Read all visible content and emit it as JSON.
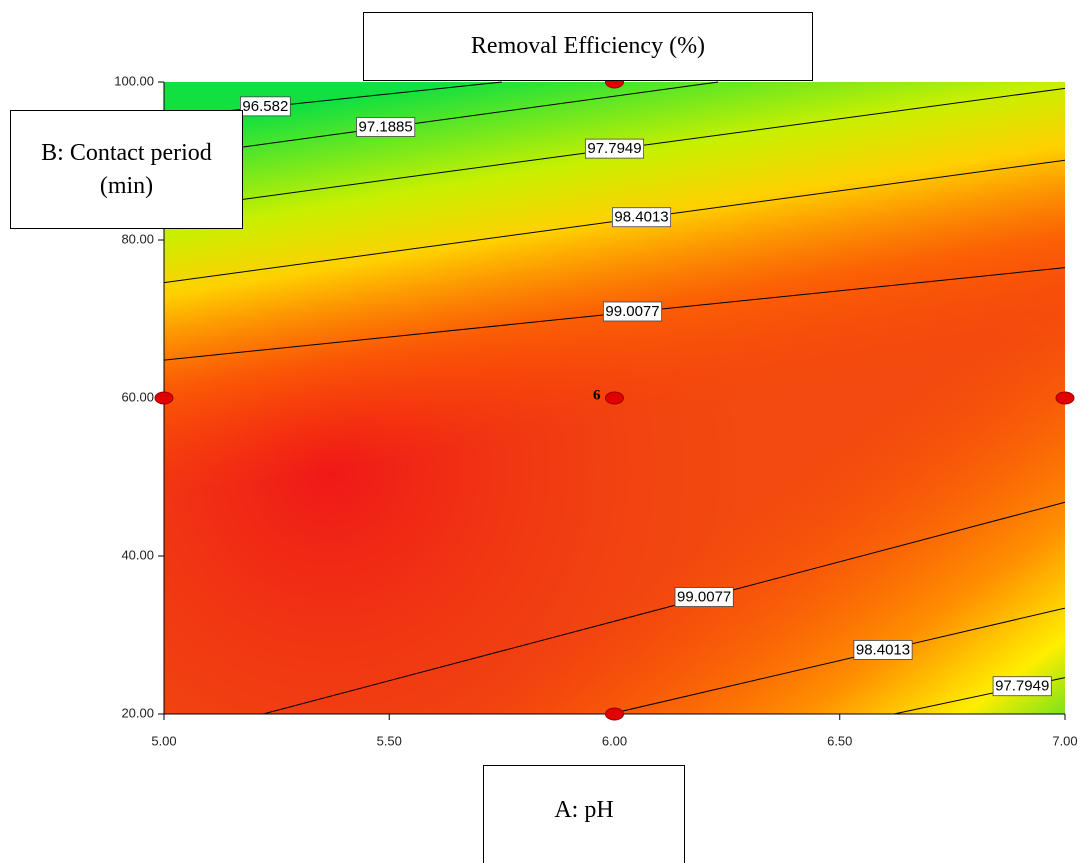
{
  "chart_data": {
    "type": "contour",
    "title": "Removal Efficiency (%)",
    "x_label": "A: pH",
    "y_label": "B: Contact period (min)",
    "xlim": [
      5,
      7
    ],
    "ylim": [
      20,
      100
    ],
    "xticks": [
      {
        "value": 5,
        "label": "5.00"
      },
      {
        "value": 5.5,
        "label": "5.50"
      },
      {
        "value": 6,
        "label": "6.00"
      },
      {
        "value": 6.5,
        "label": "6.50"
      },
      {
        "value": 7,
        "label": "7.00"
      }
    ],
    "yticks": [
      {
        "value": 20,
        "label": "20.00"
      },
      {
        "value": 40,
        "label": "40.00"
      },
      {
        "value": 60,
        "label": "60.00"
      },
      {
        "value": 80,
        "label": "80.00"
      },
      {
        "value": 100,
        "label": "100.00"
      }
    ],
    "line_color": "#000000",
    "contours": [
      {
        "level": 96.582,
        "x": [
          5,
          5.75
        ],
        "y": [
          95.5,
          100
        ]
      },
      {
        "level": 97.1885,
        "x": [
          5,
          6.23
        ],
        "y": [
          90.4,
          100
        ]
      },
      {
        "level": 97.7949,
        "x": [
          5,
          7
        ],
        "y": [
          83.8,
          99.2
        ]
      },
      {
        "level": 98.4013,
        "x": [
          5,
          7
        ],
        "y": [
          74.6,
          90.1
        ]
      },
      {
        "level": 99.0077,
        "x": [
          5,
          7
        ],
        "y": [
          64.8,
          76.5
        ]
      },
      {
        "level": 99.0077,
        "x": [
          5.22,
          7
        ],
        "y": [
          20,
          46.8
        ]
      },
      {
        "level": 98.4013,
        "x": [
          5.99,
          7
        ],
        "y": [
          20,
          33.4
        ]
      },
      {
        "level": 97.7949,
        "x": [
          6.62,
          7
        ],
        "y": [
          20,
          24.6
        ]
      }
    ],
    "design_points": {
      "x": [
        5,
        6,
        7,
        6,
        6
      ],
      "y": [
        60,
        60,
        60,
        20,
        100
      ],
      "color": "#e00000"
    },
    "center_point_count": 6
  }
}
